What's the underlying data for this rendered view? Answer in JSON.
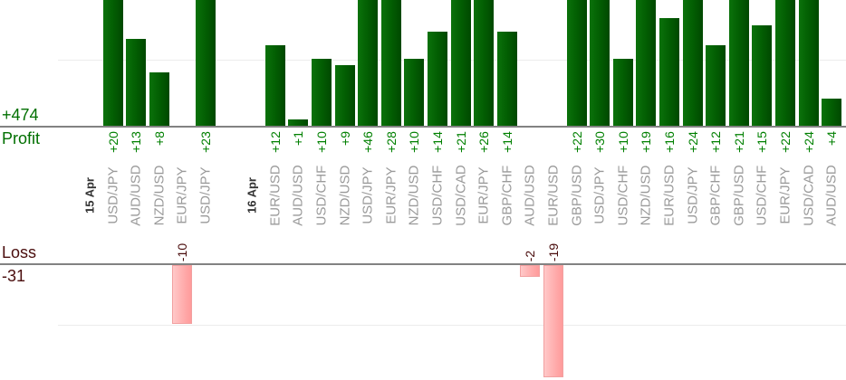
{
  "chart_data": {
    "type": "bar",
    "title": "",
    "panels": {
      "profit": {
        "axis_label": "Profit",
        "total": "+474",
        "gridline_values": [
          10
        ]
      },
      "loss": {
        "axis_label": "Loss",
        "total": "-31",
        "gridline_values": [
          -10
        ]
      }
    },
    "layout_hints": {
      "orientation": "vertical-bars",
      "grid": "light-horizontal",
      "legend": "none",
      "profit_bars_clipped_at_top": true,
      "x_axis": "one slot per trade, date label slots start each day group"
    },
    "slots": [
      {
        "kind": "date",
        "label": "15 Apr"
      },
      {
        "kind": "trade",
        "symbol": "USD/JPY",
        "value": 20,
        "value_label": "+20"
      },
      {
        "kind": "trade",
        "symbol": "AUD/USD",
        "value": 13,
        "value_label": "+13"
      },
      {
        "kind": "trade",
        "symbol": "NZD/USD",
        "value": 8,
        "value_label": "+8"
      },
      {
        "kind": "trade",
        "symbol": "EUR/JPY",
        "value": -10,
        "value_label": "-10"
      },
      {
        "kind": "trade",
        "symbol": "USD/JPY",
        "value": 23,
        "value_label": "+23"
      },
      {
        "kind": "empty"
      },
      {
        "kind": "date",
        "label": "16 Apr"
      },
      {
        "kind": "trade",
        "symbol": "EUR/USD",
        "value": 12,
        "value_label": "+12"
      },
      {
        "kind": "trade",
        "symbol": "AUD/USD",
        "value": 1,
        "value_label": "+1"
      },
      {
        "kind": "trade",
        "symbol": "USD/CHF",
        "value": 10,
        "value_label": "+10"
      },
      {
        "kind": "trade",
        "symbol": "NZD/USD",
        "value": 9,
        "value_label": "+9"
      },
      {
        "kind": "trade",
        "symbol": "USD/JPY",
        "value": 46,
        "value_label": "+46"
      },
      {
        "kind": "trade",
        "symbol": "EUR/JPY",
        "value": 28,
        "value_label": "+28"
      },
      {
        "kind": "trade",
        "symbol": "NZD/USD",
        "value": 10,
        "value_label": "+10"
      },
      {
        "kind": "trade",
        "symbol": "USD/CHF",
        "value": 14,
        "value_label": "+14"
      },
      {
        "kind": "trade",
        "symbol": "USD/CAD",
        "value": 21,
        "value_label": "+21"
      },
      {
        "kind": "trade",
        "symbol": "EUR/JPY",
        "value": 26,
        "value_label": "+26"
      },
      {
        "kind": "trade",
        "symbol": "GBP/CHF",
        "value": 14,
        "value_label": "+14"
      },
      {
        "kind": "trade",
        "symbol": "AUD/USD",
        "value": -2,
        "value_label": "-2"
      },
      {
        "kind": "trade",
        "symbol": "EUR/USD",
        "value": -19,
        "value_label": "-19"
      },
      {
        "kind": "trade",
        "symbol": "GBP/USD",
        "value": 22,
        "value_label": "+22"
      },
      {
        "kind": "trade",
        "symbol": "USD/JPY",
        "value": 30,
        "value_label": "+30"
      },
      {
        "kind": "trade",
        "symbol": "USD/CHF",
        "value": 10,
        "value_label": "+10"
      },
      {
        "kind": "trade",
        "symbol": "NZD/USD",
        "value": 19,
        "value_label": "+19"
      },
      {
        "kind": "trade",
        "symbol": "EUR/USD",
        "value": 16,
        "value_label": "+16"
      },
      {
        "kind": "trade",
        "symbol": "USD/JPY",
        "value": 24,
        "value_label": "+24"
      },
      {
        "kind": "trade",
        "symbol": "GBP/CHF",
        "value": 12,
        "value_label": "+12"
      },
      {
        "kind": "trade",
        "symbol": "GBP/USD",
        "value": 21,
        "value_label": "+21"
      },
      {
        "kind": "trade",
        "symbol": "USD/CHF",
        "value": 15,
        "value_label": "+15"
      },
      {
        "kind": "trade",
        "symbol": "EUR/JPY",
        "value": 22,
        "value_label": "+22"
      },
      {
        "kind": "trade",
        "symbol": "USD/CAD",
        "value": 24,
        "value_label": "+24"
      },
      {
        "kind": "trade",
        "symbol": "AUD/USD",
        "value": 4,
        "value_label": "+4"
      }
    ]
  },
  "colors": {
    "profit_text": "#006f00",
    "profit_value_text": "#008000",
    "loss_text": "#4a0d0d",
    "symbol_text": "#9a9a9a",
    "date_text": "#333333",
    "profit_bar_light": "#0b720b",
    "profit_bar_dark": "#004800",
    "loss_bar_light": "#ffc9c9",
    "loss_bar_dark": "#ff9b9b",
    "axis_line": "#828282",
    "gridline": "#ececec",
    "background": "#ffffff"
  }
}
